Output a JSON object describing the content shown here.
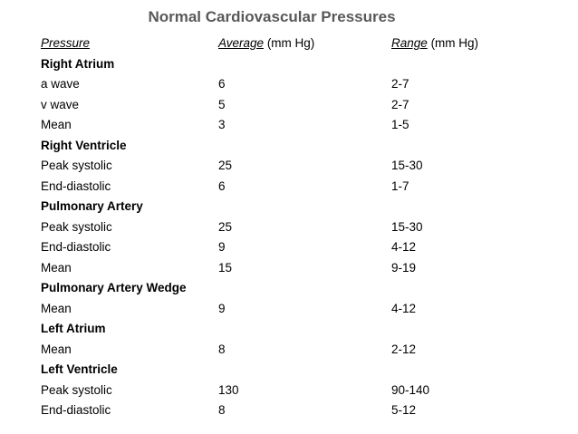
{
  "title": "Normal Cardiovascular Pressures",
  "header": {
    "pressure": "Pressure",
    "average": "Average",
    "average_unit": "(mm Hg)",
    "range": "Range",
    "range_unit": "(mm Hg)"
  },
  "rows": [
    {
      "type": "section",
      "label": "Right Atrium"
    },
    {
      "type": "data",
      "label": "a wave",
      "average": "6",
      "range": "2-7"
    },
    {
      "type": "data",
      "label": "v wave",
      "average": "5",
      "range": "2-7"
    },
    {
      "type": "data",
      "label": "Mean",
      "average": "3",
      "range": "1-5"
    },
    {
      "type": "section",
      "label": "Right Ventricle"
    },
    {
      "type": "data",
      "label": "Peak systolic",
      "average": "25",
      "range": "15-30"
    },
    {
      "type": "data",
      "label": "End-diastolic",
      "average": "6",
      "range": "1-7"
    },
    {
      "type": "section",
      "label": "Pulmonary Artery"
    },
    {
      "type": "data",
      "label": "Peak systolic",
      "average": "25",
      "range": "15-30"
    },
    {
      "type": "data",
      "label": "End-diastolic",
      "average": "9",
      "range": "4-12"
    },
    {
      "type": "data",
      "label": "Mean",
      "average": "15",
      "range": "9-19"
    },
    {
      "type": "section",
      "label": "Pulmonary Artery Wedge"
    },
    {
      "type": "data",
      "label": "Mean",
      "average": "9",
      "range": "4-12"
    },
    {
      "type": "section",
      "label": "Left Atrium"
    },
    {
      "type": "data",
      "label": "Mean",
      "average": "8",
      "range": "2-12"
    },
    {
      "type": "section",
      "label": "Left Ventricle"
    },
    {
      "type": "data",
      "label": "Peak systolic",
      "average": "130",
      "range": "90-140"
    },
    {
      "type": "data",
      "label": "End-diastolic",
      "average": "8",
      "range": "5-12"
    }
  ]
}
